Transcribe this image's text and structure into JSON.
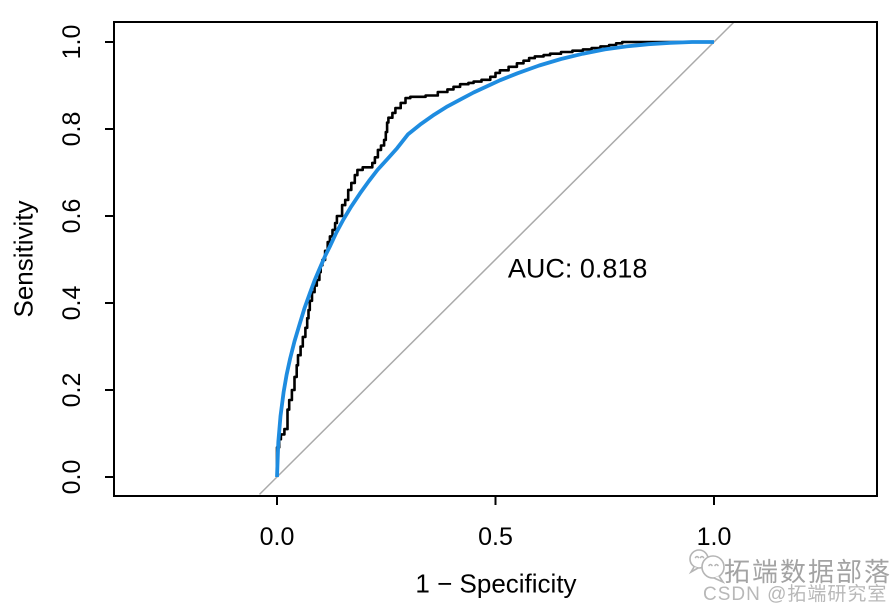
{
  "figure": {
    "background": "#ffffff",
    "watermark": {
      "brand": "拓端数据部落",
      "credit": "CSDN @拓端研究室",
      "logo_icon": "chat-bubbles-icon",
      "brand_color": "#a3a3a3",
      "credit_color": "#b8b8b8"
    }
  },
  "chart_data": {
    "type": "line",
    "title": "",
    "xlabel": "1 − Specificity",
    "ylabel": "Sensitivity",
    "xlim": [
      0,
      1
    ],
    "ylim": [
      0,
      1
    ],
    "grid": false,
    "legend": "none",
    "x_ticks": [
      0.0,
      0.5,
      1.0
    ],
    "x_tick_labels": [
      "0.0",
      "0.5",
      "1.0"
    ],
    "y_ticks": [
      0.0,
      0.2,
      0.4,
      0.6,
      0.8,
      1.0
    ],
    "y_tick_labels": [
      "0.0",
      "0.2",
      "0.4",
      "0.6",
      "0.8",
      "1.0"
    ],
    "auc": 0.818,
    "annotation": {
      "text": "AUC: 0.818",
      "x": 0.688,
      "y": 0.478
    },
    "axis_color": "#000000",
    "series": [
      {
        "name": "chance-diagonal",
        "draw": "line",
        "color": "#aaaaaa",
        "width": 1.5,
        "points": [
          [
            -0.04,
            -0.04
          ],
          [
            1.045,
            1.045
          ]
        ]
      },
      {
        "name": "empirical-roc",
        "draw": "step",
        "color": "#000000",
        "width": 2.6,
        "points": [
          [
            0.0,
            0.0
          ],
          [
            0.0,
            0.045
          ],
          [
            0.005,
            0.068
          ],
          [
            0.009,
            0.087
          ],
          [
            0.017,
            0.098
          ],
          [
            0.024,
            0.11
          ],
          [
            0.028,
            0.155
          ],
          [
            0.034,
            0.177
          ],
          [
            0.04,
            0.2
          ],
          [
            0.045,
            0.23
          ],
          [
            0.048,
            0.257
          ],
          [
            0.054,
            0.28
          ],
          [
            0.059,
            0.3
          ],
          [
            0.065,
            0.322
          ],
          [
            0.069,
            0.343
          ],
          [
            0.072,
            0.365
          ],
          [
            0.075,
            0.384
          ],
          [
            0.08,
            0.405
          ],
          [
            0.086,
            0.425
          ],
          [
            0.091,
            0.44
          ],
          [
            0.097,
            0.453
          ],
          [
            0.1,
            0.471
          ],
          [
            0.104,
            0.487
          ],
          [
            0.11,
            0.499
          ],
          [
            0.116,
            0.52
          ],
          [
            0.121,
            0.54
          ],
          [
            0.127,
            0.553
          ],
          [
            0.133,
            0.568
          ],
          [
            0.137,
            0.584
          ],
          [
            0.149,
            0.6
          ],
          [
            0.156,
            0.625
          ],
          [
            0.163,
            0.637
          ],
          [
            0.17,
            0.66
          ],
          [
            0.178,
            0.676
          ],
          [
            0.184,
            0.694
          ],
          [
            0.196,
            0.706
          ],
          [
            0.218,
            0.712
          ],
          [
            0.224,
            0.722
          ],
          [
            0.231,
            0.735
          ],
          [
            0.238,
            0.752
          ],
          [
            0.245,
            0.762
          ],
          [
            0.249,
            0.775
          ],
          [
            0.252,
            0.793
          ],
          [
            0.255,
            0.815
          ],
          [
            0.264,
            0.826
          ],
          [
            0.271,
            0.837
          ],
          [
            0.283,
            0.848
          ],
          [
            0.294,
            0.86
          ],
          [
            0.305,
            0.871
          ],
          [
            0.34,
            0.874
          ],
          [
            0.368,
            0.877
          ],
          [
            0.39,
            0.885
          ],
          [
            0.404,
            0.891
          ],
          [
            0.419,
            0.897
          ],
          [
            0.438,
            0.903
          ],
          [
            0.45,
            0.906
          ],
          [
            0.468,
            0.909
          ],
          [
            0.488,
            0.913
          ],
          [
            0.5,
            0.92
          ],
          [
            0.51,
            0.929
          ],
          [
            0.53,
            0.935
          ],
          [
            0.549,
            0.943
          ],
          [
            0.564,
            0.951
          ],
          [
            0.577,
            0.957
          ],
          [
            0.59,
            0.963
          ],
          [
            0.61,
            0.967
          ],
          [
            0.625,
            0.97
          ],
          [
            0.65,
            0.973
          ],
          [
            0.676,
            0.977
          ],
          [
            0.7,
            0.98
          ],
          [
            0.72,
            0.983
          ],
          [
            0.74,
            0.986
          ],
          [
            0.76,
            0.99
          ],
          [
            0.776,
            0.993
          ],
          [
            0.79,
            0.997
          ],
          [
            0.82,
            1.0
          ],
          [
            1.0,
            1.0
          ]
        ]
      },
      {
        "name": "smooth-roc",
        "draw": "line",
        "color": "#1E8CE0",
        "width": 3.8,
        "points": [
          [
            0.0,
            0.0
          ],
          [
            0.003,
            0.08
          ],
          [
            0.008,
            0.14
          ],
          [
            0.015,
            0.195
          ],
          [
            0.022,
            0.235
          ],
          [
            0.03,
            0.272
          ],
          [
            0.04,
            0.312
          ],
          [
            0.052,
            0.352
          ],
          [
            0.063,
            0.388
          ],
          [
            0.075,
            0.422
          ],
          [
            0.086,
            0.452
          ],
          [
            0.097,
            0.478
          ],
          [
            0.11,
            0.508
          ],
          [
            0.122,
            0.532
          ],
          [
            0.136,
            0.562
          ],
          [
            0.152,
            0.592
          ],
          [
            0.17,
            0.622
          ],
          [
            0.19,
            0.652
          ],
          [
            0.21,
            0.68
          ],
          [
            0.23,
            0.706
          ],
          [
            0.252,
            0.73
          ],
          [
            0.275,
            0.756
          ],
          [
            0.3,
            0.788
          ],
          [
            0.33,
            0.812
          ],
          [
            0.36,
            0.833
          ],
          [
            0.39,
            0.852
          ],
          [
            0.42,
            0.868
          ],
          [
            0.45,
            0.884
          ],
          [
            0.48,
            0.898
          ],
          [
            0.51,
            0.912
          ],
          [
            0.55,
            0.928
          ],
          [
            0.6,
            0.946
          ],
          [
            0.65,
            0.961
          ],
          [
            0.7,
            0.973
          ],
          [
            0.75,
            0.983
          ],
          [
            0.8,
            0.99
          ],
          [
            0.85,
            0.995
          ],
          [
            0.9,
            0.998
          ],
          [
            0.95,
            1.0
          ],
          [
            1.0,
            1.0
          ]
        ]
      }
    ]
  }
}
